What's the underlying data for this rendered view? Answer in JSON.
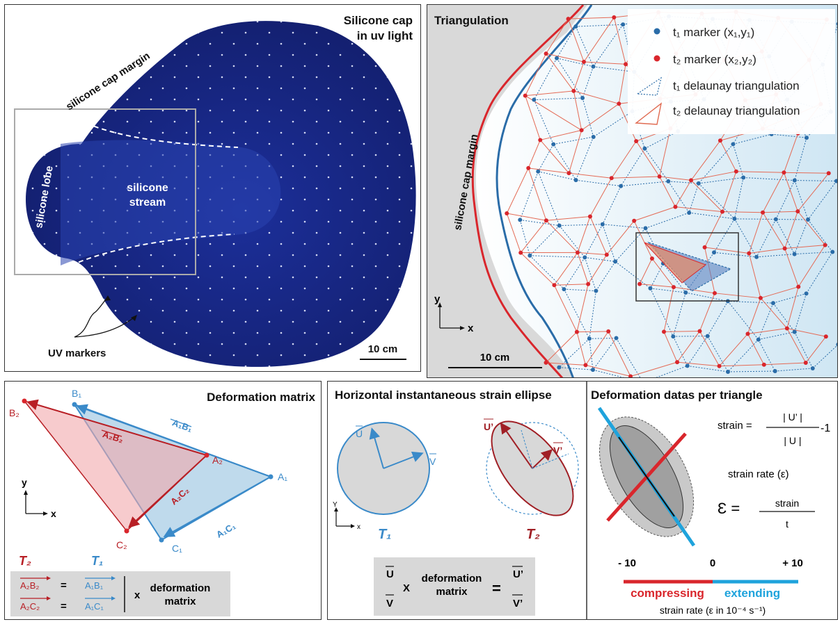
{
  "panel_a": {
    "title_line1": "Silicone cap",
    "title_line2": "in uv light",
    "cap_margin": "silicone cap margin",
    "lobe": "silicone lobe",
    "stream_line1": "silicone",
    "stream_line2": "stream",
    "markers": "UV markers",
    "scale": "10 cm"
  },
  "panel_b": {
    "title": "Triangulation",
    "cap_margin": "silicone cap margin",
    "legend": {
      "t1_marker": "t₁ marker (x₁,y₁)",
      "t2_marker": "t₂ marker (x₂,y₂)",
      "t1_tri": "t₁ delaunay triangulation",
      "t2_tri": "t₂ delaunay triangulation"
    },
    "axis_y": "y",
    "axis_x": "x",
    "scale": "10 cm"
  },
  "panel_c": {
    "title": "Deformation matrix",
    "a1": "A₁",
    "b1": "B₁",
    "c1": "C₁",
    "a2": "A₂",
    "b2": "B₂",
    "c2": "C₂",
    "v_a1b1": "A₁B₁",
    "v_a1c1": "A₁C₁",
    "v_a2b2": "A₂B₂",
    "v_a2c2": "A₂C₂",
    "axis_y": "y",
    "axis_x": "x",
    "eq_t2": "T₂",
    "eq_t1": "T₁",
    "eq_row1_left": "A₂B₂",
    "eq_row1_right": "A₁B₁",
    "eq_row2_left": "A₂C₂",
    "eq_row2_right": "A₁C₁",
    "equals": "=",
    "times": "x",
    "matrix_line1": "deformation",
    "matrix_line2": "matrix"
  },
  "panel_d": {
    "title": "Horizontal instantaneous strain ellipse",
    "u": "U",
    "v": "V",
    "u_prime": "U’",
    "v_prime": "V’",
    "t1": "T₁",
    "t2": "T₂",
    "axis_y": "Y",
    "axis_x": "x",
    "eq_u": "U",
    "eq_v": "V",
    "times": "X",
    "matrix_line1": "deformation",
    "matrix_line2": "matrix",
    "equals": "=",
    "eq_u_prime": "U’",
    "eq_v_prime": "V’"
  },
  "panel_e": {
    "title": "Deformation datas per triangle",
    "strain_label": "strain =",
    "strain_num": "| U’ |",
    "strain_den": "| U |",
    "strain_minus": "-1",
    "rate_label": "strain rate (ε)",
    "eps": "Ɛ =",
    "rate_num": "strain",
    "rate_den": "t",
    "tick_min": "- 10",
    "tick_zero": "0",
    "tick_max": "+ 10",
    "compressing": "compressing",
    "extending": "extending",
    "axis_caption": "strain rate (ε in 10⁻⁴ s⁻¹)",
    "colors": {
      "compress": "#d9262c",
      "extend": "#1fa3dc"
    }
  }
}
